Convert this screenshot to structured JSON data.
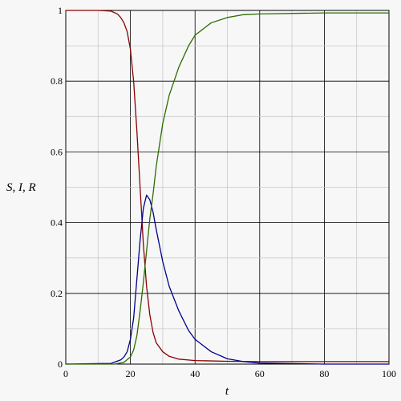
{
  "chart_data": {
    "type": "line",
    "xlabel": "t",
    "ylabel": "S, I, R",
    "xlim": [
      0,
      100
    ],
    "ylim": [
      0,
      1
    ],
    "x_ticks": [
      0,
      20,
      40,
      60,
      80,
      100
    ],
    "y_ticks": [
      0,
      0.2,
      0.4,
      0.6,
      0.8,
      1
    ],
    "grid": true,
    "legend": "none",
    "series": [
      {
        "color": "#8b0000",
        "x": [
          0,
          10,
          14,
          16,
          17,
          18,
          19,
          20,
          21,
          22,
          23,
          24,
          25,
          26,
          27,
          28,
          30,
          32,
          35,
          40,
          50,
          60,
          80,
          100
        ],
        "y": [
          1.0,
          1.0,
          0.998,
          0.99,
          0.98,
          0.965,
          0.94,
          0.89,
          0.8,
          0.66,
          0.5,
          0.34,
          0.22,
          0.14,
          0.09,
          0.06,
          0.035,
          0.022,
          0.014,
          0.01,
          0.008,
          0.007,
          0.007,
          0.007
        ]
      },
      {
        "color": "#00008b",
        "x": [
          0,
          14,
          17,
          18,
          19,
          20,
          21,
          22,
          23,
          24,
          25,
          26,
          27,
          28,
          30,
          32,
          35,
          38,
          40,
          45,
          50,
          55,
          60,
          80,
          100
        ],
        "y": [
          0.0,
          0.002,
          0.012,
          0.02,
          0.035,
          0.07,
          0.13,
          0.24,
          0.35,
          0.44,
          0.478,
          0.465,
          0.43,
          0.38,
          0.29,
          0.22,
          0.15,
          0.095,
          0.07,
          0.035,
          0.015,
          0.007,
          0.003,
          0.0,
          0.0
        ]
      },
      {
        "color": "#2e6b00",
        "x": [
          0,
          15,
          18,
          20,
          21,
          22,
          23,
          24,
          25,
          26,
          27,
          28,
          30,
          32,
          35,
          38,
          40,
          45,
          50,
          55,
          60,
          80,
          100
        ],
        "y": [
          0.0,
          0.0,
          0.005,
          0.02,
          0.04,
          0.08,
          0.15,
          0.23,
          0.32,
          0.41,
          0.48,
          0.56,
          0.68,
          0.76,
          0.84,
          0.9,
          0.93,
          0.965,
          0.98,
          0.988,
          0.99,
          0.993,
          0.993
        ]
      }
    ]
  }
}
